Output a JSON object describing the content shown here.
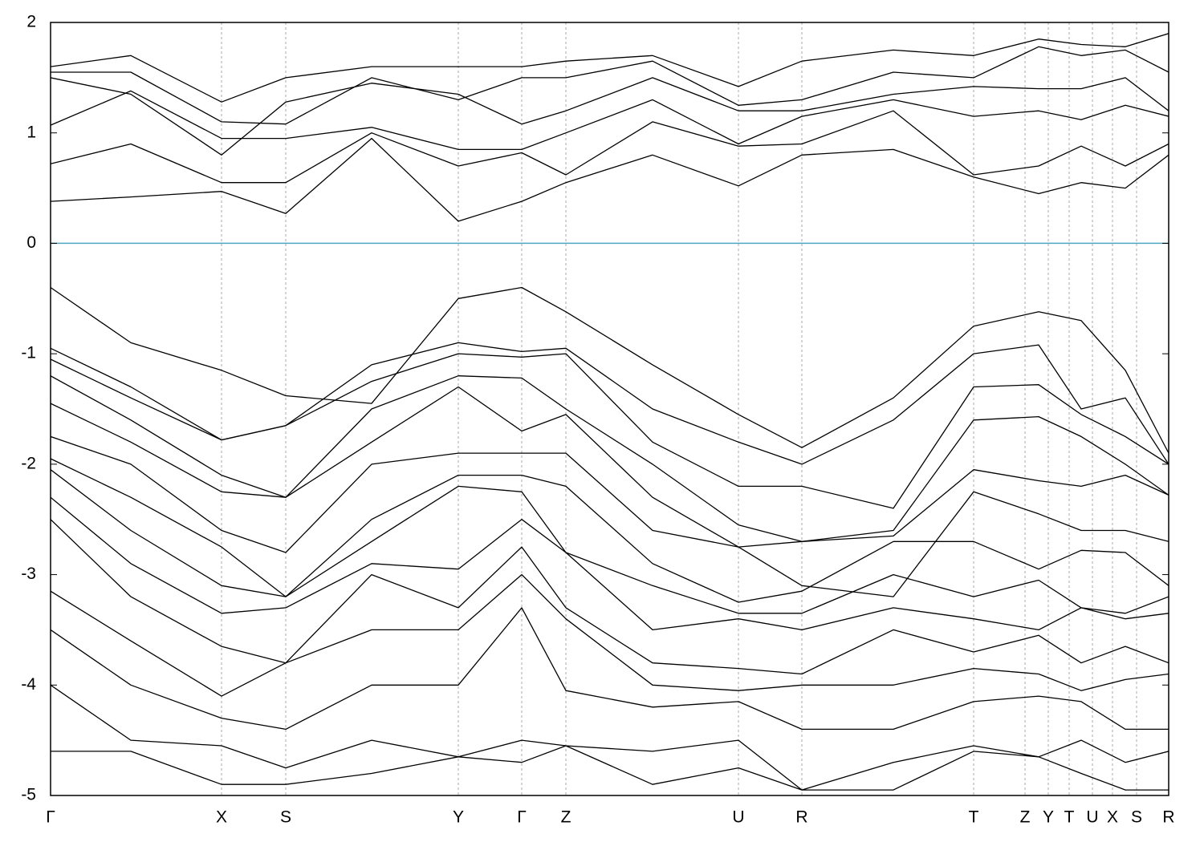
{
  "chart_data": {
    "type": "line",
    "x": [
      0,
      0.1,
      0.213,
      0.293,
      0.4,
      0.508,
      0.587,
      0.642,
      0.75,
      0.857,
      0.936,
      1.05,
      1.15,
      1.231,
      1.284,
      1.339,
      1.393
    ],
    "xlim": [
      0,
      1.393
    ],
    "xticks": [
      {
        "value": 0,
        "label": "Γ"
      },
      {
        "value": 0.213,
        "label": "X"
      },
      {
        "value": 0.293,
        "label": "S"
      },
      {
        "value": 0.508,
        "label": "Y"
      },
      {
        "value": 0.587,
        "label": "Γ"
      },
      {
        "value": 0.642,
        "label": "Z"
      },
      {
        "value": 0.857,
        "label": "U"
      },
      {
        "value": 0.936,
        "label": "R"
      },
      {
        "value": 1.15,
        "label": "T"
      },
      {
        "value": 1.214,
        "label": "Z"
      },
      {
        "value": 1.243,
        "label": "Y"
      },
      {
        "value": 1.269,
        "label": "T"
      },
      {
        "value": 1.298,
        "label": "U"
      },
      {
        "value": 1.323,
        "label": "X"
      },
      {
        "value": 1.353,
        "label": "S"
      },
      {
        "value": 1.393,
        "label": "R"
      }
    ],
    "ylim": [
      -5,
      2
    ],
    "yticks": [
      -5,
      -4,
      -3,
      -2,
      -1,
      0,
      1,
      2
    ],
    "hline": 0,
    "hline_color": "#4aa8c0",
    "color": "#000000",
    "series": [
      {
        "values": [
          0.38,
          0.42,
          0.47,
          0.27,
          0.95,
          0.2,
          0.38,
          0.55,
          0.8,
          0.52,
          0.8,
          0.85,
          0.6,
          0.45,
          0.55,
          0.5,
          0.8
        ]
      },
      {
        "values": [
          0.72,
          0.9,
          0.55,
          0.55,
          1.0,
          0.7,
          0.82,
          0.62,
          1.1,
          0.88,
          0.9,
          1.2,
          0.62,
          0.7,
          0.88,
          0.7,
          0.9
        ]
      },
      {
        "values": [
          1.07,
          1.38,
          0.95,
          0.95,
          1.05,
          0.85,
          0.85,
          1.0,
          1.3,
          0.9,
          1.15,
          1.3,
          1.15,
          1.2,
          1.12,
          1.25,
          1.15
        ]
      },
      {
        "values": [
          1.5,
          1.35,
          0.8,
          1.28,
          1.45,
          1.35,
          1.08,
          1.2,
          1.5,
          1.2,
          1.2,
          1.35,
          1.42,
          1.4,
          1.4,
          1.5,
          1.2
        ]
      },
      {
        "values": [
          1.55,
          1.55,
          1.1,
          1.08,
          1.5,
          1.3,
          1.5,
          1.5,
          1.65,
          1.25,
          1.3,
          1.55,
          1.5,
          1.78,
          1.7,
          1.75,
          1.55
        ]
      },
      {
        "values": [
          1.6,
          1.7,
          1.28,
          1.5,
          1.6,
          1.6,
          1.6,
          1.65,
          1.7,
          1.42,
          1.65,
          1.75,
          1.7,
          1.85,
          1.8,
          1.78,
          1.9
        ]
      },
      {
        "values": [
          -0.4,
          -0.9,
          -1.15,
          -1.38,
          -1.45,
          -0.5,
          -0.4,
          -0.62,
          -1.1,
          -1.55,
          -1.85,
          -1.4,
          -0.75,
          -0.62,
          -0.7,
          -1.15,
          -1.9
        ]
      },
      {
        "values": [
          -0.95,
          -1.3,
          -1.78,
          -1.65,
          -1.1,
          -0.9,
          -0.98,
          -0.95,
          -1.5,
          -1.8,
          -2.0,
          -1.6,
          -1.0,
          -0.92,
          -1.5,
          -1.4,
          -2.0
        ]
      },
      {
        "values": [
          -1.05,
          -1.4,
          -1.78,
          -1.65,
          -1.25,
          -1.0,
          -1.03,
          -1.0,
          -1.8,
          -2.2,
          -2.2,
          -2.4,
          -1.3,
          -1.28,
          -1.55,
          -1.75,
          -2.0
        ]
      },
      {
        "values": [
          -1.2,
          -1.6,
          -2.1,
          -2.3,
          -1.5,
          -1.2,
          -1.22,
          -1.5,
          -2.0,
          -2.55,
          -2.7,
          -2.6,
          -1.6,
          -1.57,
          -1.75,
          -2.0,
          -2.28
        ]
      },
      {
        "values": [
          -1.45,
          -1.8,
          -2.25,
          -2.3,
          -1.8,
          -1.3,
          -1.7,
          -1.55,
          -2.3,
          -2.75,
          -2.7,
          -2.65,
          -2.05,
          -2.15,
          -2.2,
          -2.1,
          -2.28
        ]
      },
      {
        "values": [
          -1.75,
          -2.0,
          -2.6,
          -2.8,
          -2.0,
          -1.9,
          -1.9,
          -1.9,
          -2.6,
          -2.75,
          -3.1,
          -3.2,
          -2.25,
          -2.45,
          -2.6,
          -2.6,
          -2.7
        ]
      },
      {
        "values": [
          -1.95,
          -2.3,
          -2.75,
          -3.2,
          -2.5,
          -2.1,
          -2.1,
          -2.2,
          -2.9,
          -3.25,
          -3.15,
          -2.7,
          -2.7,
          -2.95,
          -2.78,
          -2.8,
          -3.1
        ]
      },
      {
        "values": [
          -2.05,
          -2.6,
          -3.1,
          -3.2,
          -2.7,
          -2.2,
          -2.25,
          -2.8,
          -3.1,
          -3.35,
          -3.35,
          -3.0,
          -3.2,
          -3.05,
          -3.3,
          -3.35,
          -3.2
        ]
      },
      {
        "values": [
          -2.3,
          -2.9,
          -3.35,
          -3.3,
          -2.9,
          -2.95,
          -2.5,
          -2.8,
          -3.5,
          -3.4,
          -3.5,
          -3.3,
          -3.4,
          -3.5,
          -3.3,
          -3.4,
          -3.35
        ]
      },
      {
        "values": [
          -2.5,
          -3.2,
          -3.65,
          -3.8,
          -3.0,
          -3.3,
          -2.75,
          -3.3,
          -3.8,
          -3.85,
          -3.9,
          -3.5,
          -3.7,
          -3.55,
          -3.8,
          -3.65,
          -3.8
        ]
      },
      {
        "values": [
          -3.15,
          -3.6,
          -4.1,
          -3.8,
          -3.5,
          -3.5,
          -3.0,
          -3.4,
          -4.0,
          -4.05,
          -4.0,
          -4.0,
          -3.85,
          -3.9,
          -4.05,
          -3.95,
          -3.9
        ]
      },
      {
        "values": [
          -3.5,
          -4.0,
          -4.3,
          -4.4,
          -4.0,
          -4.0,
          -3.3,
          -4.05,
          -4.2,
          -4.15,
          -4.4,
          -4.4,
          -4.15,
          -4.1,
          -4.15,
          -4.4,
          -4.4
        ]
      },
      {
        "values": [
          -4.0,
          -4.5,
          -4.55,
          -4.75,
          -4.5,
          -4.65,
          -4.5,
          -4.55,
          -4.6,
          -4.5,
          -4.95,
          -4.7,
          -4.55,
          -4.65,
          -4.5,
          -4.7,
          -4.6
        ]
      },
      {
        "values": [
          -4.6,
          -4.6,
          -4.9,
          -4.9,
          -4.8,
          -4.65,
          -4.7,
          -4.55,
          -4.9,
          -4.75,
          -4.95,
          -4.95,
          -4.6,
          -4.65,
          -4.8,
          -4.95,
          -4.95
        ]
      }
    ]
  }
}
